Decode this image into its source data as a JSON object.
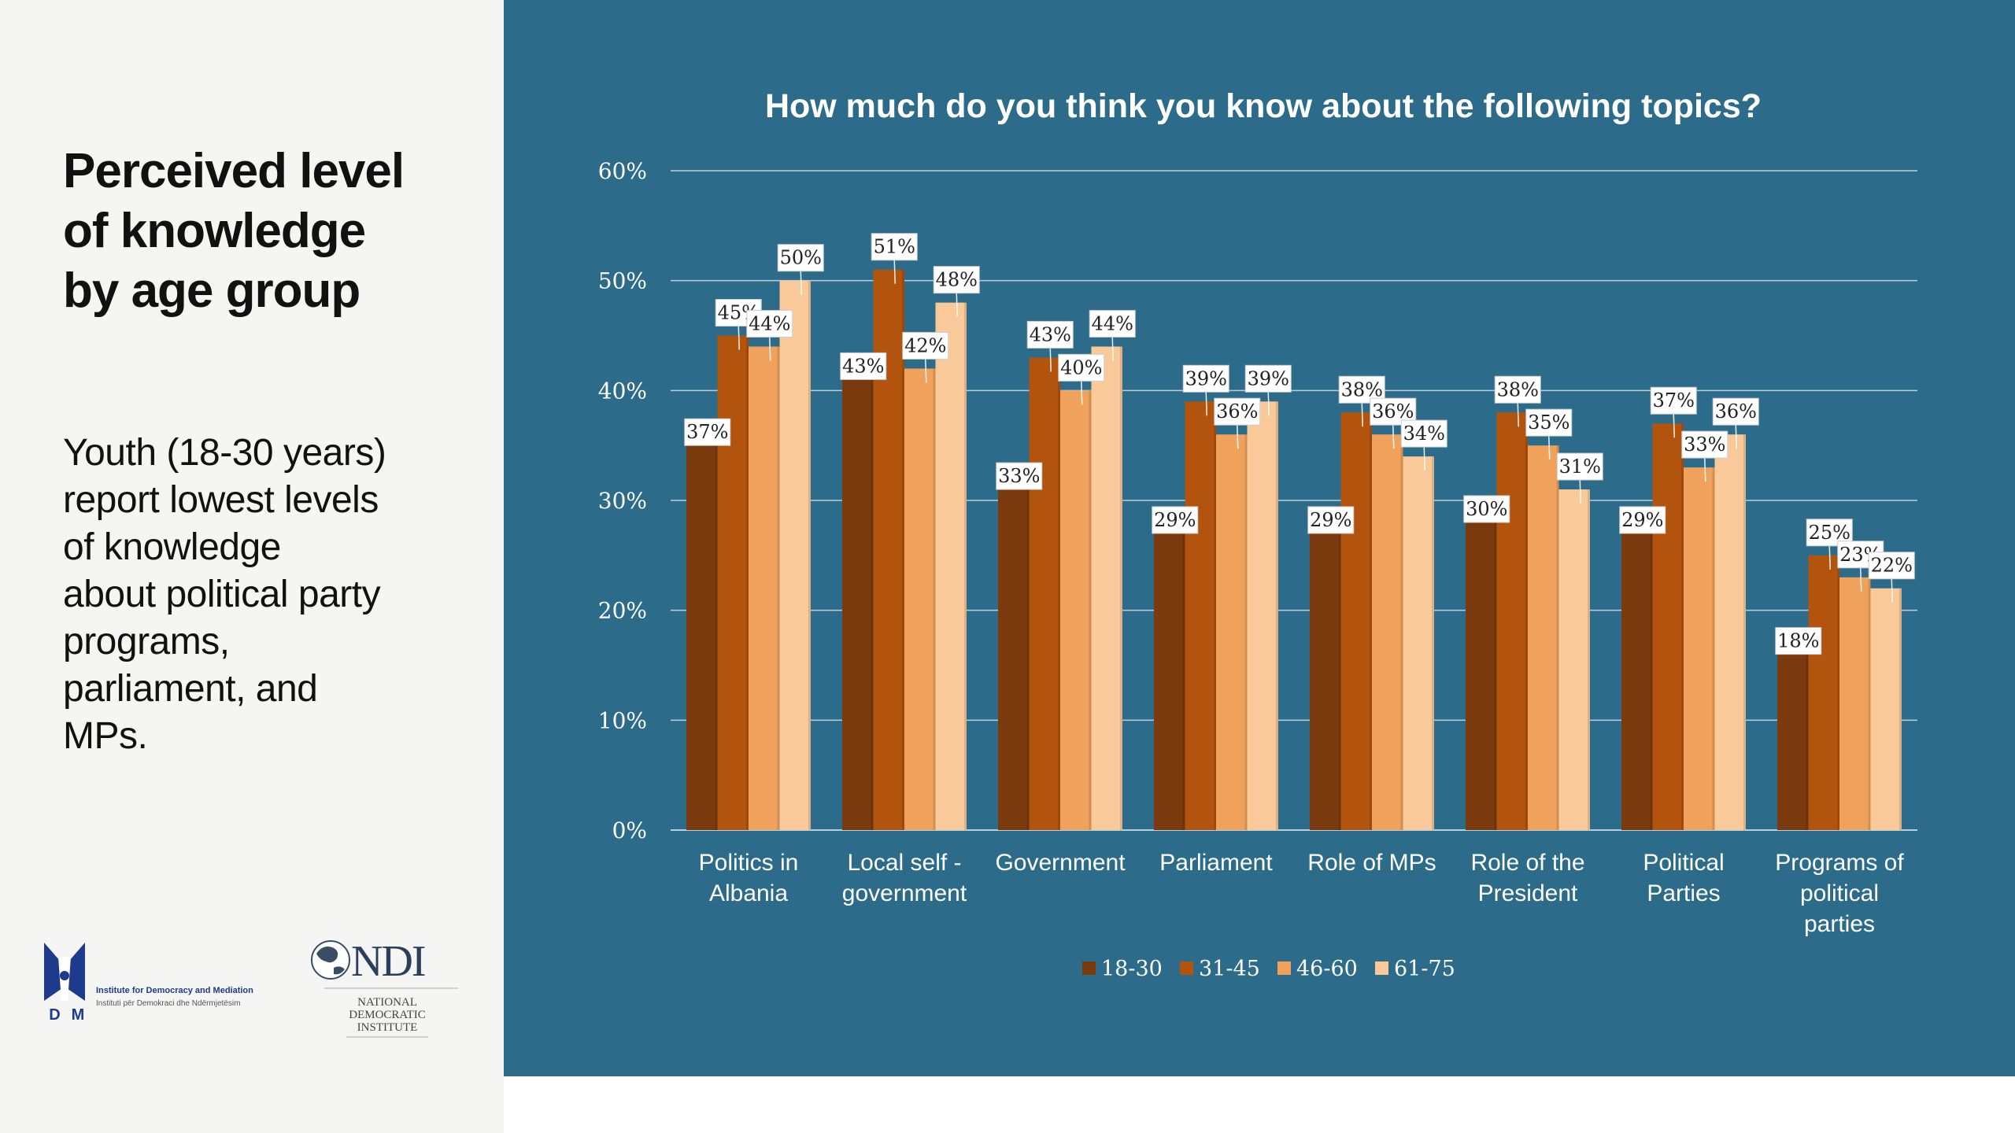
{
  "slide": {
    "heading_lines": [
      "Perceived level",
      "of knowledge",
      "by age group"
    ],
    "summary_lines": [
      "Youth (18-30 years)",
      "report lowest levels",
      "of knowledge",
      "about political party",
      "programs,",
      "parliament, and",
      "MPs."
    ]
  },
  "logos": {
    "idm": {
      "mark": "IDM",
      "line1": "Institute for Democracy and Mediation",
      "line2": "Instituti për Demokraci dhe Ndërmjetësim"
    },
    "ndi": {
      "mark": "NDI",
      "line1": "NATIONAL",
      "line2": "DEMOCRATIC",
      "line3": "INSTITUTE"
    }
  },
  "colors": {
    "panel_bg": "#2d6b8a",
    "series": [
      "#7b3a0d",
      "#b3540e",
      "#f0a25c",
      "#f9c99a"
    ]
  },
  "chart_data": {
    "type": "bar",
    "title": "How much do you think you know about the following topics?",
    "categories": [
      [
        "Politics in",
        "Albania"
      ],
      [
        "Local self -",
        "government"
      ],
      [
        "Government"
      ],
      [
        "Parliament"
      ],
      [
        "Role of MPs"
      ],
      [
        "Role of the",
        "President"
      ],
      [
        "Political",
        "Parties"
      ],
      [
        "Programs of",
        "political",
        "parties"
      ]
    ],
    "series": [
      {
        "name": "18-30",
        "values": [
          37,
          43,
          33,
          29,
          29,
          30,
          29,
          18
        ]
      },
      {
        "name": "31-45",
        "values": [
          45,
          51,
          43,
          39,
          38,
          38,
          37,
          25
        ]
      },
      {
        "name": "46-60",
        "values": [
          44,
          42,
          40,
          36,
          36,
          35,
          33,
          23
        ]
      },
      {
        "name": "61-75",
        "values": [
          50,
          48,
          44,
          39,
          34,
          31,
          36,
          22
        ]
      }
    ],
    "value_suffix": "%",
    "ylim": [
      0,
      60
    ],
    "yticks": [
      "0%",
      "10%",
      "20%",
      "30%",
      "40%",
      "50%",
      "60%"
    ],
    "grid": true,
    "legend_position": "bottom"
  }
}
